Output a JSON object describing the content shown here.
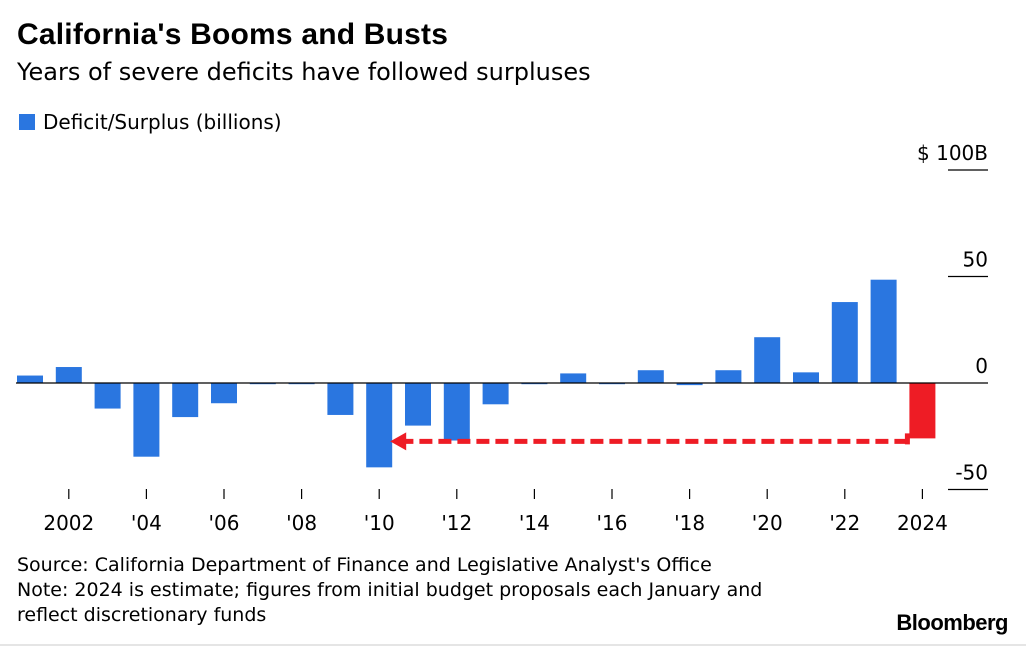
{
  "title": "California's Booms and Busts",
  "subtitle": "Years of severe deficits have followed surpluses",
  "legend": {
    "label": "Deficit/Surplus (billions)",
    "color": "#2a76e0"
  },
  "chart_data": {
    "type": "bar",
    "title": "California's Booms and Busts",
    "subtitle": "Years of severe deficits have followed surpluses",
    "categories": [
      "2001",
      "2002",
      "2003",
      "2004",
      "2005",
      "2006",
      "2007",
      "2008",
      "2009",
      "2010",
      "2011",
      "2012",
      "2013",
      "2014",
      "2015",
      "2016",
      "2017",
      "2018",
      "2019",
      "2020",
      "2021",
      "2022",
      "2023",
      "2024"
    ],
    "series": [
      {
        "name": "Deficit/Surplus (billions)",
        "values": [
          3.5,
          7.5,
          -12,
          -34.6,
          -16,
          -9.5,
          -0.5,
          -0.5,
          -15,
          -39.6,
          -20,
          -27,
          -10,
          -0.5,
          4.5,
          0,
          6,
          -1,
          6,
          21.5,
          5,
          38,
          48.5,
          -26
        ],
        "colors": [
          "#2a76e0",
          "#2a76e0",
          "#2a76e0",
          "#2a76e0",
          "#2a76e0",
          "#2a76e0",
          "#2a76e0",
          "#2a76e0",
          "#2a76e0",
          "#2a76e0",
          "#2a76e0",
          "#2a76e0",
          "#2a76e0",
          "#2a76e0",
          "#2a76e0",
          "#2a76e0",
          "#2a76e0",
          "#2a76e0",
          "#2a76e0",
          "#2a76e0",
          "#2a76e0",
          "#2a76e0",
          "#2a76e0",
          "#ee1c25"
        ]
      }
    ],
    "x_tick_labels": [
      {
        "year": "2002",
        "label": "2002"
      },
      {
        "year": "2004",
        "label": "'04"
      },
      {
        "year": "2006",
        "label": "'06"
      },
      {
        "year": "2008",
        "label": "'08"
      },
      {
        "year": "2010",
        "label": "'10"
      },
      {
        "year": "2012",
        "label": "'12"
      },
      {
        "year": "2014",
        "label": "'14"
      },
      {
        "year": "2016",
        "label": "'16"
      },
      {
        "year": "2018",
        "label": "'18"
      },
      {
        "year": "2020",
        "label": "'20"
      },
      {
        "year": "2022",
        "label": "'22"
      },
      {
        "year": "2024",
        "label": "2024"
      }
    ],
    "y_ticks": [
      {
        "value": 100,
        "label": "$ 100B"
      },
      {
        "value": 50,
        "label": "50"
      },
      {
        "value": 0,
        "label": "0"
      },
      {
        "value": -50,
        "label": "-50"
      }
    ],
    "ylim": [
      -50,
      100
    ],
    "annotation": {
      "type": "dashed-arrow",
      "from": "2024",
      "to": "2010",
      "value": -26,
      "color": "#ee1c25"
    },
    "colors": {
      "bar": "#2a76e0",
      "highlight": "#ee1c25"
    }
  },
  "footer": {
    "source": "Source: California Department of Finance and Legislative Analyst's Office",
    "note_line1": "Note: 2024 is estimate; figures from initial budget proposals each January and",
    "note_line2": "reflect discretionary funds"
  },
  "brand": "Bloomberg"
}
